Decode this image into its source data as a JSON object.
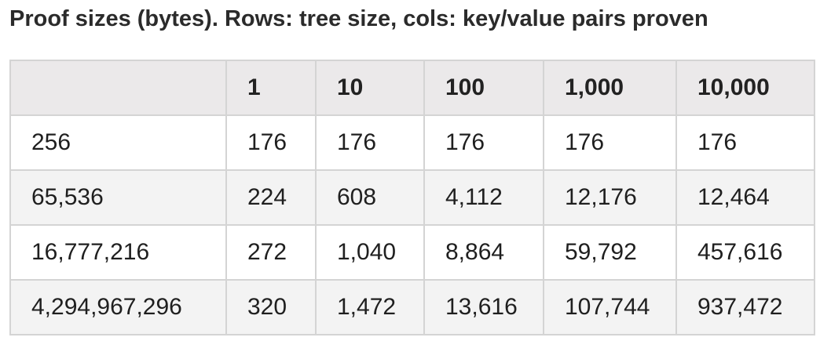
{
  "caption": "Proof sizes (bytes). Rows: tree size, cols: key/value pairs proven",
  "table": {
    "headers": [
      "",
      "1",
      "10",
      "100",
      "1,000",
      "10,000"
    ],
    "rows": [
      [
        "256",
        "176",
        "176",
        "176",
        "176",
        "176"
      ],
      [
        "65,536",
        "224",
        "608",
        "4,112",
        "12,176",
        "12,464"
      ],
      [
        "16,777,216",
        "272",
        "1,040",
        "8,864",
        "59,792",
        "457,616"
      ],
      [
        "4,294,967,296",
        "320",
        "1,472",
        "13,616",
        "107,744",
        "937,472"
      ]
    ]
  }
}
